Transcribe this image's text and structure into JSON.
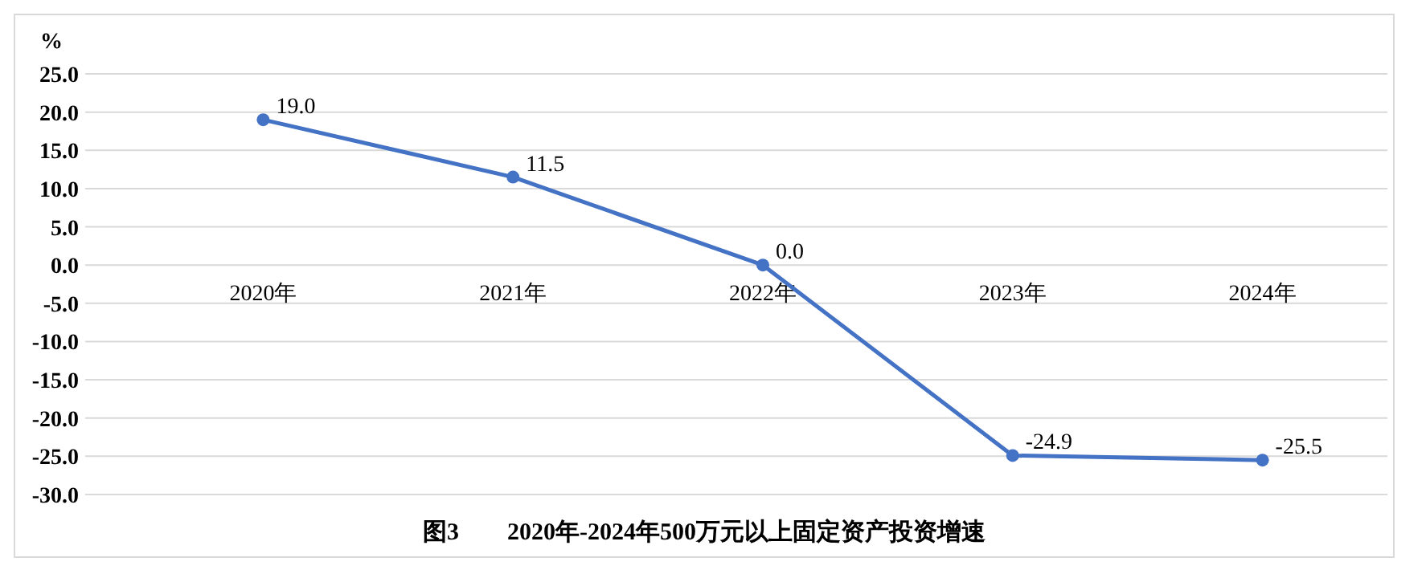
{
  "chart_data": {
    "type": "line",
    "title": "图3　　2020年-2024年500万元以上固定资产投资增速",
    "ylabel": "%",
    "categories": [
      "2020年",
      "2021年",
      "2022年",
      "2023年",
      "2024年"
    ],
    "series": [
      {
        "color": "#4472c4",
        "values": [
          19.0,
          11.5,
          0.0,
          -24.9,
          -25.5
        ],
        "value_labels": [
          "19.0",
          "11.5",
          "0.0",
          "-24.9",
          "-25.5"
        ]
      }
    ],
    "ylim": [
      -30,
      25
    ],
    "yticks": [
      {
        "value": 25,
        "label": "25.0"
      },
      {
        "value": 20,
        "label": "20.0"
      },
      {
        "value": 15,
        "label": "15.0"
      },
      {
        "value": 10,
        "label": "10.0"
      },
      {
        "value": 5,
        "label": "5.0"
      },
      {
        "value": 0,
        "label": "0.0"
      },
      {
        "value": -5,
        "label": "-5.0"
      },
      {
        "value": -10,
        "label": "-10.0"
      },
      {
        "value": -15,
        "label": "-15.0"
      },
      {
        "value": -20,
        "label": "-20.0"
      },
      {
        "value": -25,
        "label": "-25.0"
      },
      {
        "value": -30,
        "label": "-30.0"
      }
    ],
    "grid": "y",
    "marker": "circle",
    "line_style": "solid"
  }
}
